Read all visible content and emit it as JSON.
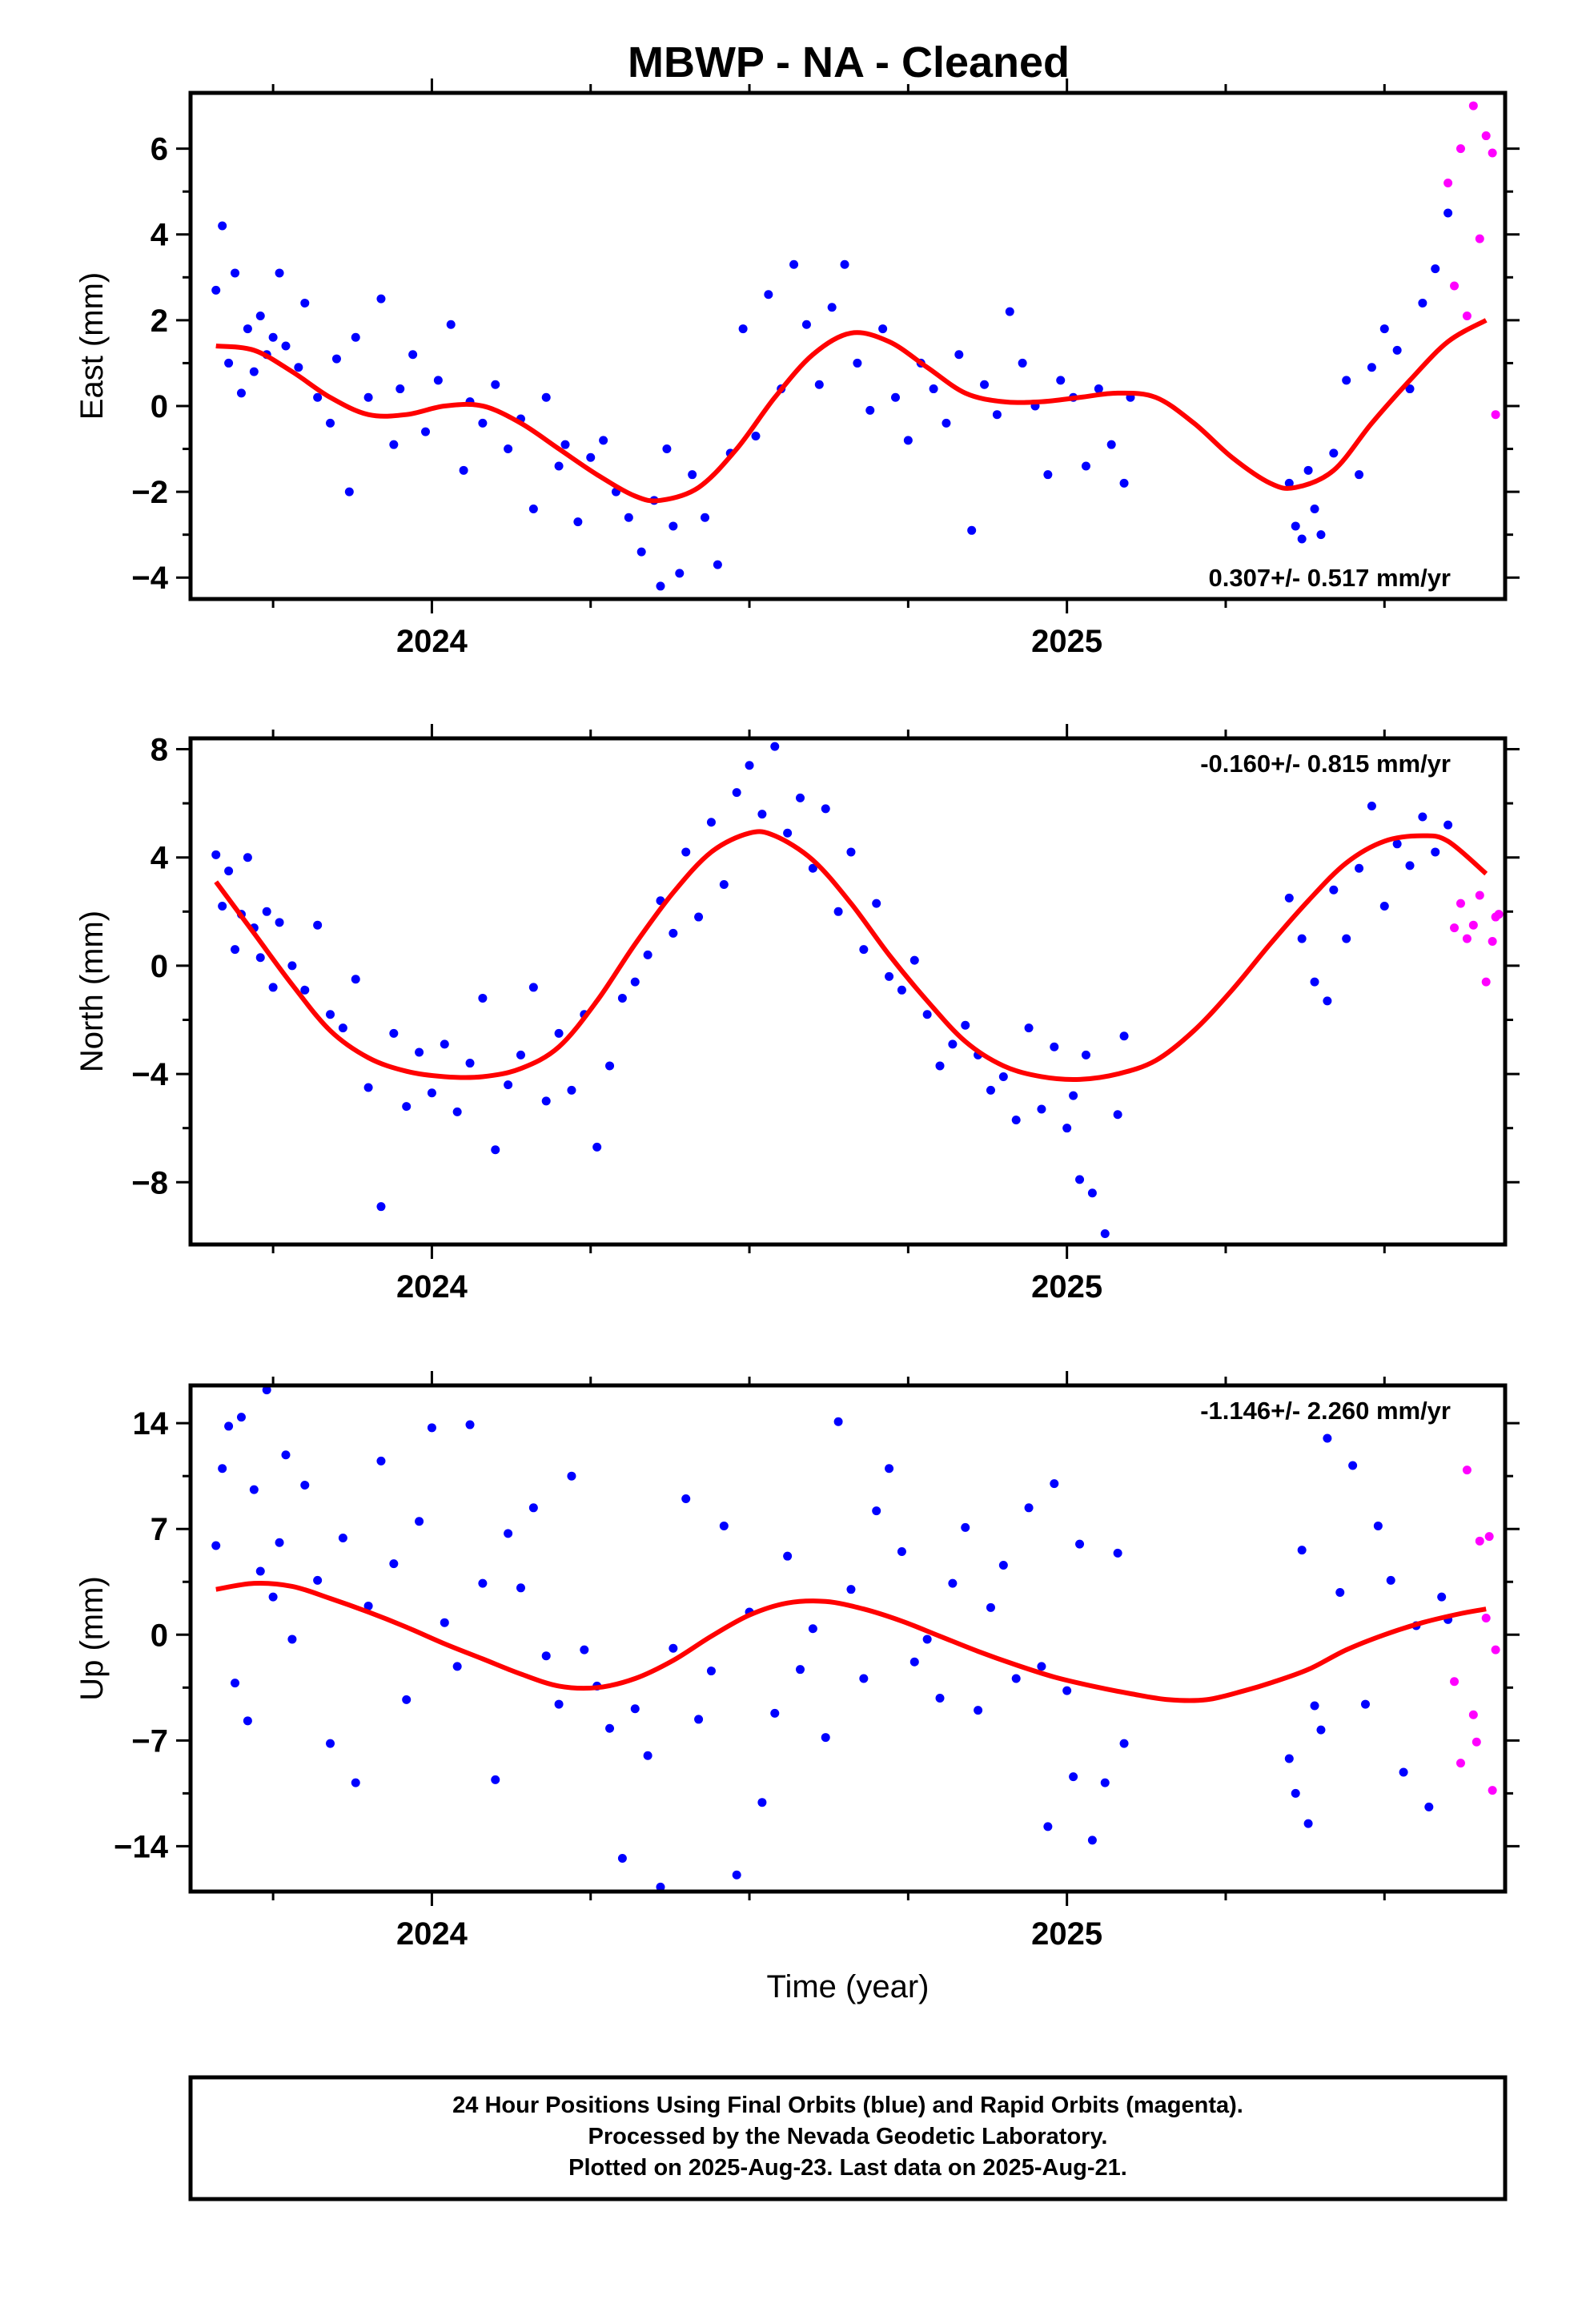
{
  "title": "MBWP  - NA - Cleaned",
  "footer": {
    "lines": [
      "24 Hour Positions Using Final Orbits (blue) and Rapid Orbits (magenta).",
      "Processed by the Nevada Geodetic Laboratory.",
      "Plotted on 2025-Aug-23. Last data on 2025-Aug-21."
    ]
  },
  "colors": {
    "final": "#0000ff",
    "rapid": "#ff00ff",
    "model": "#ff0000",
    "frame": "#000000"
  },
  "chart_data": [
    {
      "type": "scatter",
      "panel": "east",
      "ylabel": "East (mm)",
      "xlabel": "",
      "ylim": [
        -4.5,
        7.3
      ],
      "xlim": [
        2023.62,
        2025.69
      ],
      "yticks": [
        -4,
        -2,
        0,
        2,
        4,
        6
      ],
      "xticks": [
        2024,
        2025
      ],
      "rate": "0.307+/- 0.517 mm/yr",
      "rate_position": "bottom-right",
      "model": {
        "x": [
          2023.66,
          2023.72,
          2023.78,
          2023.84,
          2023.9,
          2023.96,
          2024.02,
          2024.08,
          2024.14,
          2024.2,
          2024.26,
          2024.32,
          2024.36,
          2024.42,
          2024.48,
          2024.54,
          2024.6,
          2024.66,
          2024.72,
          2024.78,
          2024.84,
          2024.9,
          2024.96,
          2025.02,
          2025.08,
          2025.14,
          2025.2,
          2025.26,
          2025.32,
          2025.36,
          2025.42,
          2025.48,
          2025.54,
          2025.6,
          2025.66
        ],
        "y": [
          1.4,
          1.3,
          0.8,
          0.2,
          -0.2,
          -0.2,
          0.0,
          0.0,
          -0.4,
          -1.0,
          -1.6,
          -2.1,
          -2.2,
          -1.9,
          -1.0,
          0.2,
          1.2,
          1.7,
          1.5,
          0.9,
          0.3,
          0.1,
          0.1,
          0.2,
          0.3,
          0.2,
          -0.4,
          -1.2,
          -1.8,
          -1.9,
          -1.5,
          -0.4,
          0.6,
          1.5,
          2.0
        ]
      },
      "final": {
        "x": [
          2023.66,
          2023.67,
          2023.68,
          2023.69,
          2023.7,
          2023.71,
          2023.72,
          2023.73,
          2023.74,
          2023.75,
          2023.76,
          2023.77,
          2023.79,
          2023.8,
          2023.82,
          2023.84,
          2023.85,
          2023.87,
          2023.88,
          2023.9,
          2023.92,
          2023.94,
          2023.95,
          2023.97,
          2023.99,
          2024.01,
          2024.03,
          2024.05,
          2024.06,
          2024.08,
          2024.1,
          2024.12,
          2024.14,
          2024.16,
          2024.18,
          2024.2,
          2024.21,
          2024.23,
          2024.25,
          2024.27,
          2024.29,
          2024.31,
          2024.33,
          2024.35,
          2024.36,
          2024.37,
          2024.38,
          2024.39,
          2024.41,
          2024.43,
          2024.45,
          2024.47,
          2024.49,
          2024.51,
          2024.53,
          2024.55,
          2024.57,
          2024.59,
          2024.61,
          2024.63,
          2024.65,
          2024.67,
          2024.69,
          2024.71,
          2024.73,
          2024.75,
          2024.77,
          2024.79,
          2024.81,
          2024.83,
          2024.85,
          2024.87,
          2024.89,
          2024.91,
          2024.93,
          2024.95,
          2024.97,
          2024.99,
          2025.01,
          2025.03,
          2025.05,
          2025.07,
          2025.09,
          2025.1,
          2025.35,
          2025.36,
          2025.37,
          2025.38,
          2025.39,
          2025.4,
          2025.42,
          2025.44,
          2025.46,
          2025.48,
          2025.5,
          2025.52,
          2025.54,
          2025.56,
          2025.58,
          2025.6
        ],
        "y": [
          2.7,
          4.2,
          1.0,
          3.1,
          0.3,
          1.8,
          0.8,
          2.1,
          1.2,
          1.6,
          3.1,
          1.4,
          0.9,
          2.4,
          0.2,
          -0.4,
          1.1,
          -2.0,
          1.6,
          0.2,
          2.5,
          -0.9,
          0.4,
          1.2,
          -0.6,
          0.6,
          1.9,
          -1.5,
          0.1,
          -0.4,
          0.5,
          -1.0,
          -0.3,
          -2.4,
          0.2,
          -1.4,
          -0.9,
          -2.7,
          -1.2,
          -0.8,
          -2.0,
          -2.6,
          -3.4,
          -2.2,
          -4.2,
          -1.0,
          -2.8,
          -3.9,
          -1.6,
          -2.6,
          -3.7,
          -1.1,
          1.8,
          -0.7,
          2.6,
          0.4,
          3.3,
          1.9,
          0.5,
          2.3,
          3.3,
          1.0,
          -0.1,
          1.8,
          0.2,
          -0.8,
          1.0,
          0.4,
          -0.4,
          1.2,
          -2.9,
          0.5,
          -0.2,
          2.2,
          1.0,
          0.0,
          -1.6,
          0.6,
          0.2,
          -1.4,
          0.4,
          -0.9,
          -1.8,
          0.2,
          -1.8,
          -2.8,
          -3.1,
          -1.5,
          -2.4,
          -3.0,
          -1.1,
          0.6,
          -1.6,
          0.9,
          1.8,
          1.3,
          0.4,
          2.4,
          3.2,
          4.5
        ]
      },
      "rapid": {
        "x": [
          2025.6,
          2025.61,
          2025.62,
          2025.63,
          2025.64,
          2025.65,
          2025.66,
          2025.67,
          2025.675
        ],
        "y": [
          5.2,
          2.8,
          6.0,
          2.1,
          7.0,
          3.9,
          6.3,
          5.9,
          -0.2
        ]
      }
    },
    {
      "type": "scatter",
      "panel": "north",
      "ylabel": "North (mm)",
      "xlabel": "",
      "ylim": [
        -10.3,
        8.4
      ],
      "xlim": [
        2023.62,
        2025.69
      ],
      "yticks": [
        -8,
        -4,
        0,
        4,
        8
      ],
      "xticks": [
        2024,
        2025
      ],
      "rate": "-0.160+/- 0.815 mm/yr",
      "rate_position": "top-right",
      "model": {
        "x": [
          2023.66,
          2023.72,
          2023.78,
          2023.84,
          2023.9,
          2023.96,
          2024.02,
          2024.08,
          2024.14,
          2024.2,
          2024.26,
          2024.32,
          2024.38,
          2024.44,
          2024.5,
          2024.54,
          2024.6,
          2024.66,
          2024.72,
          2024.78,
          2024.84,
          2024.9,
          2024.96,
          2025.02,
          2025.08,
          2025.14,
          2025.2,
          2025.26,
          2025.32,
          2025.38,
          2025.44,
          2025.5,
          2025.56,
          2025.6,
          2025.66
        ],
        "y": [
          3.1,
          1.2,
          -0.7,
          -2.4,
          -3.4,
          -3.9,
          -4.1,
          -4.1,
          -3.8,
          -3.0,
          -1.3,
          0.8,
          2.7,
          4.2,
          4.9,
          4.8,
          3.9,
          2.3,
          0.4,
          -1.3,
          -2.8,
          -3.7,
          -4.1,
          -4.2,
          -4.0,
          -3.5,
          -2.4,
          -0.9,
          0.8,
          2.4,
          3.8,
          4.6,
          4.8,
          4.6,
          3.4
        ]
      },
      "final": {
        "x": [
          2023.66,
          2023.67,
          2023.68,
          2023.69,
          2023.7,
          2023.71,
          2023.72,
          2023.73,
          2023.74,
          2023.75,
          2023.76,
          2023.78,
          2023.8,
          2023.82,
          2023.84,
          2023.86,
          2023.88,
          2023.9,
          2023.92,
          2023.94,
          2023.96,
          2023.98,
          2024.0,
          2024.02,
          2024.04,
          2024.06,
          2024.08,
          2024.1,
          2024.12,
          2024.14,
          2024.16,
          2024.18,
          2024.2,
          2024.22,
          2024.24,
          2024.26,
          2024.28,
          2024.3,
          2024.32,
          2024.34,
          2024.36,
          2024.38,
          2024.4,
          2024.42,
          2024.44,
          2024.46,
          2024.48,
          2024.5,
          2024.52,
          2024.54,
          2024.56,
          2024.58,
          2024.6,
          2024.62,
          2024.64,
          2024.66,
          2024.68,
          2024.7,
          2024.72,
          2024.74,
          2024.76,
          2024.78,
          2024.8,
          2024.82,
          2024.84,
          2024.86,
          2024.88,
          2024.9,
          2024.92,
          2024.94,
          2024.96,
          2024.98,
          2025.0,
          2025.01,
          2025.02,
          2025.03,
          2025.04,
          2025.06,
          2025.08,
          2025.09,
          2025.35,
          2025.37,
          2025.39,
          2025.41,
          2025.42,
          2025.44,
          2025.46,
          2025.48,
          2025.5,
          2025.52,
          2025.54,
          2025.56,
          2025.58,
          2025.6
        ],
        "y": [
          4.1,
          2.2,
          3.5,
          0.6,
          1.9,
          4.0,
          1.4,
          0.3,
          2.0,
          -0.8,
          1.6,
          0.0,
          -0.9,
          1.5,
          -1.8,
          -2.3,
          -0.5,
          -4.5,
          -8.9,
          -2.5,
          -5.2,
          -3.2,
          -4.7,
          -2.9,
          -5.4,
          -3.6,
          -1.2,
          -6.8,
          -4.4,
          -3.3,
          -0.8,
          -5.0,
          -2.5,
          -4.6,
          -1.8,
          -6.7,
          -3.7,
          -1.2,
          -0.6,
          0.4,
          2.4,
          1.2,
          4.2,
          1.8,
          5.3,
          3.0,
          6.4,
          7.4,
          5.6,
          8.1,
          4.9,
          6.2,
          3.6,
          5.8,
          2.0,
          4.2,
          0.6,
          2.3,
          -0.4,
          -0.9,
          0.2,
          -1.8,
          -3.7,
          -2.9,
          -2.2,
          -3.3,
          -4.6,
          -4.1,
          -5.7,
          -2.3,
          -5.3,
          -3.0,
          -6.0,
          -4.8,
          -7.9,
          -3.3,
          -8.4,
          -9.9,
          -5.5,
          -2.6,
          2.5,
          1.0,
          -0.6,
          -1.3,
          2.8,
          1.0,
          3.6,
          5.9,
          2.2,
          4.5,
          3.7,
          5.5,
          4.2,
          5.2
        ]
      },
      "rapid": {
        "x": [
          2025.61,
          2025.62,
          2025.63,
          2025.64,
          2025.65,
          2025.66,
          2025.67,
          2025.675,
          2025.68
        ],
        "y": [
          1.4,
          2.3,
          1.0,
          1.5,
          2.6,
          -0.6,
          0.9,
          1.8,
          1.9
        ]
      }
    },
    {
      "type": "scatter",
      "panel": "up",
      "ylabel": "Up (mm)",
      "xlabel": "Time (year)",
      "ylim": [
        -17.0,
        16.5
      ],
      "xlim": [
        2023.62,
        2025.69
      ],
      "yticks": [
        -14,
        -7,
        0,
        7,
        14
      ],
      "xticks": [
        2024,
        2025
      ],
      "rate": "-1.146+/- 2.260 mm/yr",
      "rate_position": "top-right",
      "model": {
        "x": [
          2023.66,
          2023.72,
          2023.78,
          2023.84,
          2023.9,
          2023.96,
          2024.02,
          2024.08,
          2024.14,
          2024.2,
          2024.26,
          2024.32,
          2024.38,
          2024.44,
          2024.5,
          2024.56,
          2024.62,
          2024.68,
          2024.74,
          2024.8,
          2024.86,
          2024.92,
          2024.98,
          2025.04,
          2025.1,
          2025.16,
          2025.22,
          2025.28,
          2025.32,
          2025.38,
          2025.44,
          2025.5,
          2025.56,
          2025.62,
          2025.66
        ],
        "y": [
          3.0,
          3.4,
          3.2,
          2.4,
          1.5,
          0.5,
          -0.6,
          -1.6,
          -2.6,
          -3.4,
          -3.5,
          -2.9,
          -1.7,
          -0.1,
          1.3,
          2.1,
          2.2,
          1.7,
          0.9,
          -0.1,
          -1.1,
          -2.0,
          -2.8,
          -3.4,
          -3.9,
          -4.3,
          -4.3,
          -3.7,
          -3.2,
          -2.3,
          -1.0,
          0.0,
          0.8,
          1.4,
          1.7
        ]
      },
      "final": {
        "x": [
          2023.66,
          2023.67,
          2023.68,
          2023.69,
          2023.7,
          2023.71,
          2023.72,
          2023.73,
          2023.74,
          2023.75,
          2023.76,
          2023.77,
          2023.78,
          2023.8,
          2023.82,
          2023.84,
          2023.86,
          2023.88,
          2023.9,
          2023.92,
          2023.94,
          2023.96,
          2023.98,
          2024.0,
          2024.02,
          2024.04,
          2024.06,
          2024.08,
          2024.1,
          2024.12,
          2024.14,
          2024.16,
          2024.18,
          2024.2,
          2024.22,
          2024.24,
          2024.26,
          2024.28,
          2024.3,
          2024.32,
          2024.34,
          2024.36,
          2024.38,
          2024.4,
          2024.42,
          2024.44,
          2024.46,
          2024.48,
          2024.5,
          2024.52,
          2024.54,
          2024.56,
          2024.58,
          2024.6,
          2024.62,
          2024.64,
          2024.66,
          2024.68,
          2024.7,
          2024.72,
          2024.74,
          2024.76,
          2024.78,
          2024.8,
          2024.82,
          2024.84,
          2024.86,
          2024.88,
          2024.9,
          2024.92,
          2024.94,
          2024.96,
          2024.97,
          2024.98,
          2025.0,
          2025.01,
          2025.02,
          2025.04,
          2025.06,
          2025.08,
          2025.09,
          2025.35,
          2025.36,
          2025.37,
          2025.38,
          2025.39,
          2025.4,
          2025.41,
          2025.43,
          2025.45,
          2025.47,
          2025.49,
          2025.51,
          2025.53,
          2025.55,
          2025.57,
          2025.59,
          2025.6
        ],
        "y": [
          5.9,
          11.0,
          13.8,
          -3.2,
          14.4,
          -5.7,
          9.6,
          4.2,
          16.2,
          2.5,
          6.1,
          11.9,
          -0.3,
          9.9,
          3.6,
          -7.2,
          6.4,
          -9.8,
          1.9,
          11.5,
          4.7,
          -4.3,
          7.5,
          13.7,
          0.8,
          -2.1,
          13.9,
          3.4,
          -9.6,
          6.7,
          3.1,
          8.4,
          -1.4,
          -4.6,
          10.5,
          -1.0,
          -3.4,
          -6.2,
          -14.8,
          -4.9,
          -8.0,
          -16.7,
          -0.9,
          9.0,
          -5.6,
          -2.4,
          7.2,
          -15.9,
          1.5,
          -11.1,
          -5.2,
          5.2,
          -2.3,
          0.4,
          -6.8,
          14.1,
          3.0,
          -2.9,
          8.2,
          11.0,
          5.5,
          -1.8,
          -0.3,
          -4.2,
          3.4,
          7.1,
          -5.0,
          1.8,
          4.6,
          -2.9,
          8.4,
          -2.1,
          -12.7,
          10.0,
          -3.7,
          -9.4,
          6.0,
          -13.6,
          -9.8,
          5.4,
          -7.2,
          -8.2,
          -10.5,
          5.6,
          -12.5,
          -4.7,
          -6.3,
          13.0,
          2.8,
          11.2,
          -4.6,
          7.2,
          3.6,
          -9.1,
          0.6,
          -11.4,
          2.5,
          1.0
        ]
      },
      "rapid": {
        "x": [
          2025.61,
          2025.62,
          2025.63,
          2025.64,
          2025.645,
          2025.65,
          2025.66,
          2025.665,
          2025.67,
          2025.675
        ],
        "y": [
          -3.1,
          -8.5,
          10.9,
          -5.3,
          -7.1,
          6.2,
          1.1,
          6.5,
          -10.3,
          -1.0
        ]
      }
    }
  ]
}
